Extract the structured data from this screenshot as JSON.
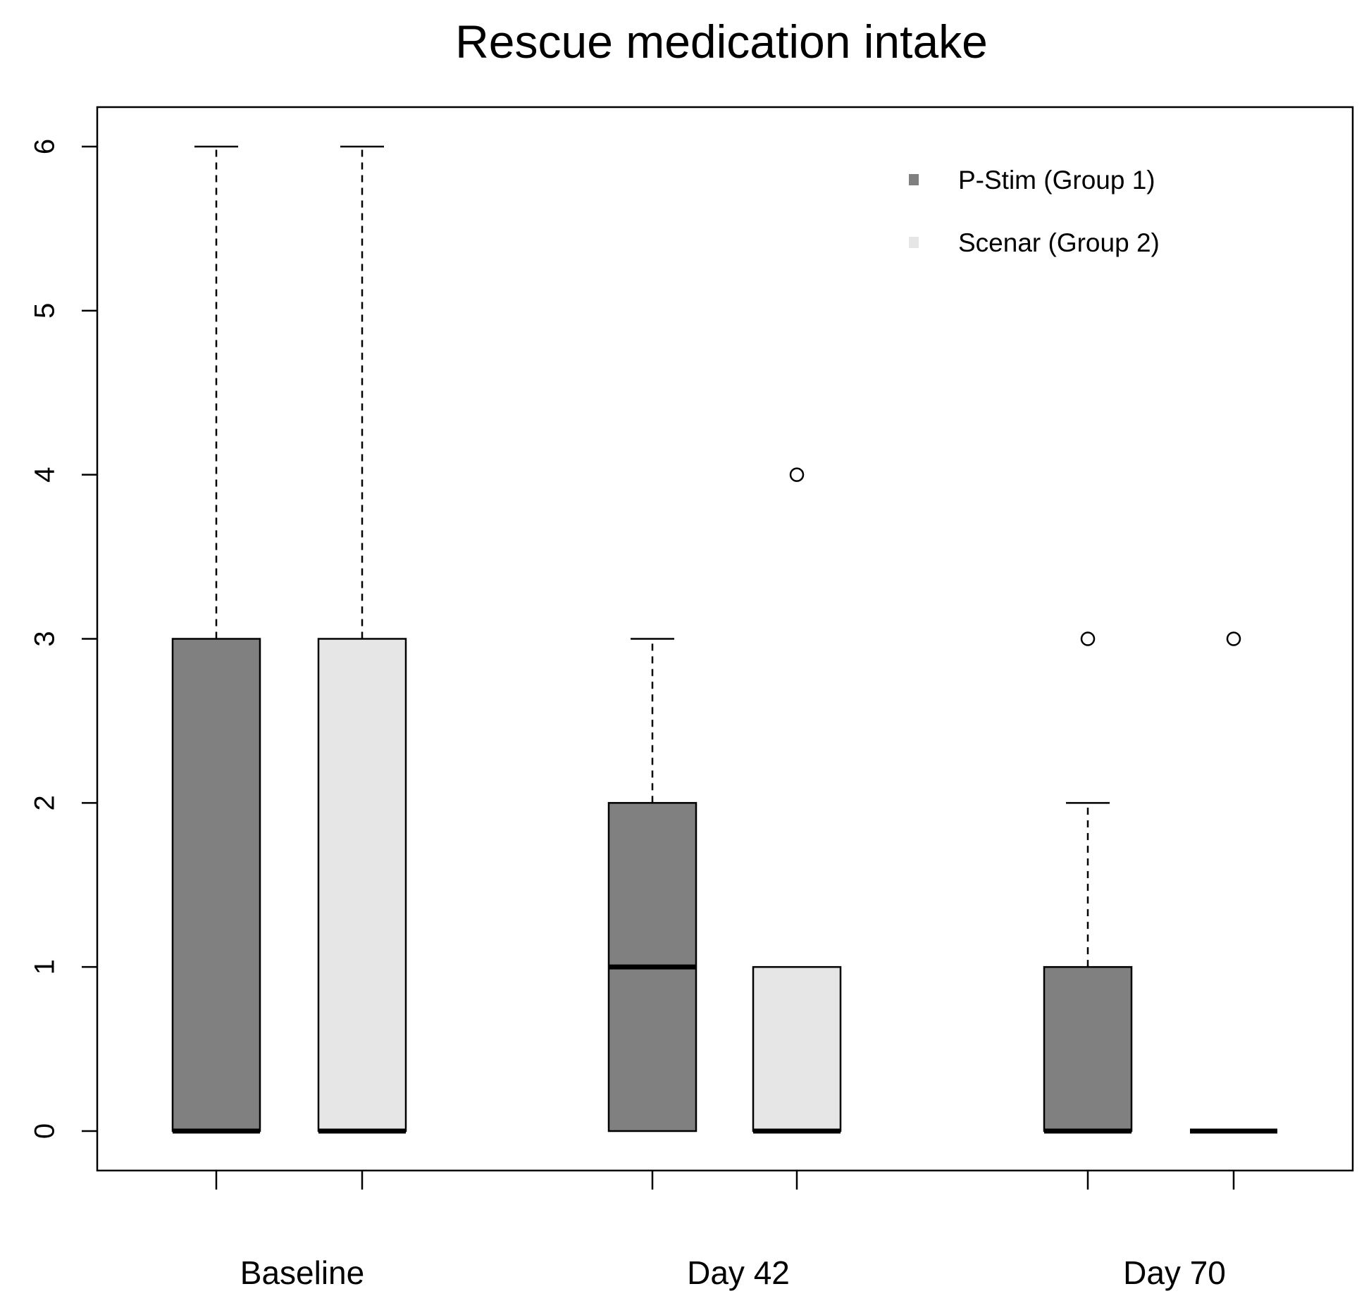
{
  "chart_data": {
    "type": "boxplot",
    "title": "Rescue medication intake",
    "xlabel": "",
    "ylabel": "",
    "ylim": [
      0,
      6
    ],
    "yticks": [
      0,
      1,
      2,
      3,
      4,
      5,
      6
    ],
    "categories": [
      "Baseline",
      "Day 42",
      "Day 70"
    ],
    "legend": {
      "position": "top-right",
      "entries": [
        {
          "name": "P-Stim (Group 1)",
          "color": "#808080"
        },
        {
          "name": "Scenar (Group 2)",
          "color": "#e6e6e6"
        }
      ]
    },
    "series": [
      {
        "name": "P-Stim (Group 1)",
        "color": "#808080",
        "boxes": [
          {
            "category": "Baseline",
            "min": 0,
            "q1": 0,
            "median": 0,
            "q3": 3,
            "max": 6,
            "outliers": []
          },
          {
            "category": "Day 42",
            "min": 0,
            "q1": 0,
            "median": 1,
            "q3": 2,
            "max": 3,
            "outliers": []
          },
          {
            "category": "Day 70",
            "min": 0,
            "q1": 0,
            "median": 0,
            "q3": 1,
            "max": 2,
            "outliers": [
              3
            ]
          }
        ]
      },
      {
        "name": "Scenar (Group 2)",
        "color": "#e6e6e6",
        "boxes": [
          {
            "category": "Baseline",
            "min": 0,
            "q1": 0,
            "median": 0,
            "q3": 3,
            "max": 6,
            "outliers": []
          },
          {
            "category": "Day 42",
            "min": 0,
            "q1": 0,
            "median": 0,
            "q3": 1,
            "max": 1,
            "outliers": [
              4
            ]
          },
          {
            "category": "Day 70",
            "min": 0,
            "q1": 0,
            "median": 0,
            "q3": 0,
            "max": 0,
            "outliers": [
              3
            ]
          }
        ]
      }
    ]
  }
}
